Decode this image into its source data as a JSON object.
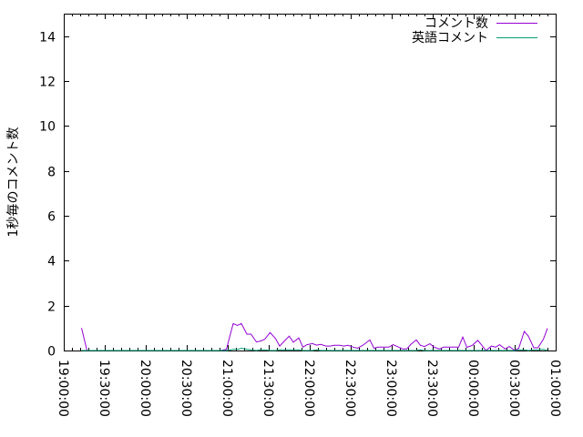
{
  "chart_data": {
    "type": "line",
    "title": "",
    "xlabel": "",
    "ylabel": "1秒毎のコメント数",
    "xlim": [
      "19:00:00",
      "01:00:00"
    ],
    "ylim": [
      0,
      15
    ],
    "grid": false,
    "legend_position": "top-right",
    "x_tick_labels": [
      "19:00:00",
      "19:30:00",
      "20:00:00",
      "20:30:00",
      "21:00:00",
      "21:30:00",
      "22:00:00",
      "22:30:00",
      "23:00:00",
      "23:30:00",
      "00:00:00",
      "00:30:00",
      "01:00:00"
    ],
    "y_tick_labels": [
      "0",
      "2",
      "4",
      "6",
      "8",
      "10",
      "12",
      "14"
    ],
    "series": [
      {
        "name": "コメント数",
        "color": "#9400d3",
        "x": [
          "19:13",
          "19:17",
          "20:55",
          "20:59",
          "21:04",
          "21:07",
          "21:10",
          "21:14",
          "21:17",
          "21:21",
          "21:24",
          "21:27",
          "21:31",
          "21:35",
          "21:38",
          "21:41",
          "21:45",
          "21:48",
          "21:52",
          "21:55",
          "21:58",
          "22:02",
          "22:05",
          "22:08",
          "22:12",
          "22:15",
          "22:18",
          "22:22",
          "22:25",
          "22:28",
          "22:32",
          "22:35",
          "22:39",
          "22:44",
          "22:47",
          "22:50",
          "22:53",
          "22:58",
          "23:01",
          "23:04",
          "23:08",
          "23:11",
          "23:14",
          "23:18",
          "23:21",
          "23:24",
          "23:28",
          "23:31",
          "23:35",
          "23:38",
          "23:42",
          "23:45",
          "23:49",
          "23:52",
          "23:55",
          "23:59",
          "00:03",
          "00:06",
          "00:09",
          "00:13",
          "00:16",
          "00:19",
          "00:23",
          "00:26",
          "00:30",
          "00:33",
          "00:37",
          "00:40",
          "00:44",
          "00:47",
          "00:51",
          "00:54"
        ],
        "values": [
          1.0,
          0,
          0,
          0.05,
          1.2,
          1.12,
          1.2,
          0.73,
          0.73,
          0.38,
          0.42,
          0.5,
          0.8,
          0.53,
          0.2,
          0.39,
          0.64,
          0.37,
          0.56,
          0.15,
          0.26,
          0.31,
          0.24,
          0.27,
          0.2,
          0.2,
          0.23,
          0.23,
          0.2,
          0.23,
          0.15,
          0.1,
          0.24,
          0.47,
          0.1,
          0.15,
          0.15,
          0.15,
          0.26,
          0.18,
          0.07,
          0.07,
          0.27,
          0.47,
          0.23,
          0.18,
          0.3,
          0.15,
          0.07,
          0.15,
          0.15,
          0.15,
          0.15,
          0.6,
          0.14,
          0.23,
          0.45,
          0.23,
          0,
          0.2,
          0.15,
          0.26,
          0.07,
          0.18,
          0.01,
          0.1,
          0.85,
          0.64,
          0.12,
          0.12,
          0.5,
          0.99
        ]
      },
      {
        "name": "英語コメント",
        "color": "#009e73",
        "x": [
          "19:13",
          "19:17",
          "20:55",
          "20:59",
          "21:04",
          "21:07",
          "21:10",
          "21:14",
          "21:17",
          "21:21",
          "21:24",
          "21:27",
          "21:31",
          "21:35",
          "21:38",
          "21:41",
          "21:45",
          "21:48",
          "21:52",
          "21:55",
          "21:58",
          "22:02",
          "22:05",
          "22:08",
          "22:12",
          "22:15",
          "22:18",
          "22:22",
          "22:25",
          "22:28",
          "22:32",
          "22:35",
          "22:39",
          "22:44",
          "22:47",
          "22:50",
          "22:53",
          "22:58",
          "23:01",
          "23:04",
          "23:08",
          "23:11",
          "23:14",
          "23:18",
          "23:21",
          "23:24",
          "23:28",
          "23:31",
          "23:35",
          "23:38",
          "23:42",
          "23:45",
          "23:49",
          "23:52",
          "23:55",
          "23:59",
          "00:03",
          "00:06",
          "00:09",
          "00:13",
          "00:16",
          "00:19",
          "00:23",
          "00:26",
          "00:30",
          "00:33",
          "00:37",
          "00:40",
          "00:44",
          "00:47",
          "00:51",
          "00:54"
        ],
        "values": [
          0,
          0,
          0,
          0,
          0.05,
          0.05,
          0.1,
          0.05,
          0.03,
          0,
          0.03,
          0.03,
          0,
          0,
          0.03,
          0.03,
          0.03,
          0.03,
          0.03,
          0,
          0,
          0,
          0.03,
          0,
          0,
          0,
          0,
          0,
          0,
          0,
          0,
          0,
          0,
          0,
          0,
          0,
          0,
          0,
          0,
          0,
          0,
          0,
          0,
          0,
          0.03,
          0,
          0,
          0,
          0,
          0,
          0,
          0,
          0,
          0,
          0,
          0,
          0,
          0,
          0,
          0,
          0,
          0,
          0,
          0,
          0,
          0.03,
          0.03,
          0,
          0.03,
          0.03,
          0.05,
          0
        ]
      }
    ]
  }
}
